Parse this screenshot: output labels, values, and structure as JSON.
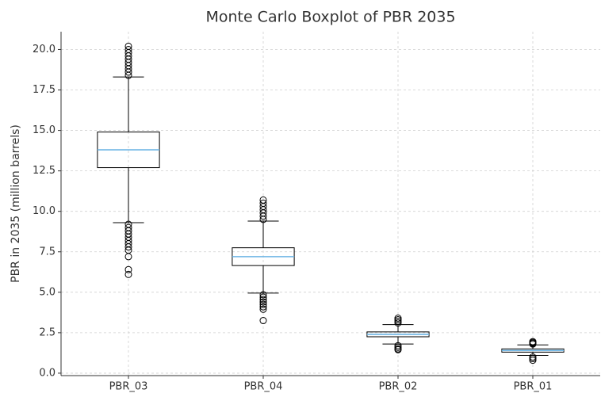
{
  "chart_data": {
    "type": "box",
    "title": "Monte Carlo Boxplot of PBR 2035",
    "ylabel": "PBR in 2035 (million barrels)",
    "categories": [
      "PBR_03",
      "PBR_04",
      "PBR_02",
      "PBR_01"
    ],
    "boxes": [
      {
        "min": 9.3,
        "q1": 12.7,
        "median": 13.8,
        "q3": 14.9,
        "max": 18.3,
        "outliers": [
          18.4,
          18.6,
          18.8,
          19.0,
          19.2,
          19.4,
          19.6,
          19.8,
          20.0,
          20.2,
          9.2,
          9.0,
          8.8,
          8.6,
          8.4,
          8.2,
          8.0,
          7.8,
          7.6,
          7.2,
          6.4,
          6.1
        ]
      },
      {
        "min": 4.95,
        "q1": 6.65,
        "median": 7.2,
        "q3": 7.75,
        "max": 9.4,
        "outliers": [
          9.5,
          9.7,
          9.9,
          10.1,
          10.3,
          10.5,
          10.7,
          4.85,
          4.7,
          4.55,
          4.4,
          4.25,
          4.1,
          3.95,
          3.25
        ]
      },
      {
        "min": 1.8,
        "q1": 2.25,
        "median": 2.4,
        "q3": 2.55,
        "max": 3.0,
        "outliers": [
          3.1,
          3.2,
          3.3,
          3.4,
          1.7,
          1.6,
          1.5,
          1.45
        ]
      },
      {
        "min": 1.1,
        "q1": 1.3,
        "median": 1.4,
        "q3": 1.5,
        "max": 1.75,
        "outliers": [
          1.8,
          1.85,
          1.9,
          1.95,
          1.0,
          0.9,
          0.8
        ]
      }
    ],
    "median_color": "#6cb4e4",
    "ylim": [
      -0.15,
      21.1
    ],
    "yticks": [
      {
        "value": 0,
        "label": "0.0"
      },
      2.5,
      {
        "value": 5,
        "label": "5.0"
      },
      7.5,
      {
        "value": 10,
        "label": "10.0"
      },
      12.5,
      {
        "value": 15,
        "label": "15.0"
      },
      17.5,
      {
        "value": 20,
        "label": "20.0"
      }
    ],
    "grid": true
  }
}
